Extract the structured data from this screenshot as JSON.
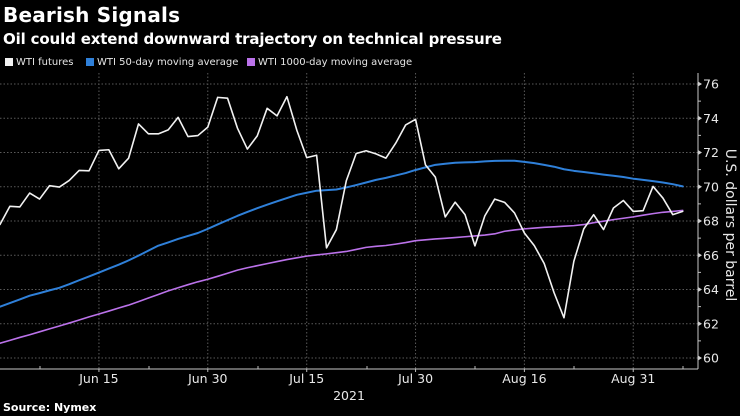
{
  "header": {
    "title": "Bearish Signals",
    "subtitle": "Oil could extend downward trajectory on technical pressure"
  },
  "legend": [
    {
      "label": "WTI futures",
      "color": "#f2f2f2"
    },
    {
      "label": "WTI 50-day moving average",
      "color": "#2f80d9"
    },
    {
      "label": "WTI 1000-day moving average",
      "color": "#bb72ea"
    }
  ],
  "footer": {
    "source": "Source: Nymex"
  },
  "chart_data": {
    "type": "line",
    "title": "Bearish Signals",
    "subtitle": "Oil could extend downward trajectory on technical pressure",
    "xlabel": "2021",
    "ylabel": "U.S. dollars per barrel",
    "yaxis_position": "right",
    "ylim": [
      59.4,
      76.6
    ],
    "yticks": [
      60,
      62,
      64,
      66,
      68,
      70,
      72,
      74,
      76
    ],
    "ytick_labels": [
      "60",
      "62",
      "64",
      "66",
      "68",
      "70",
      "72",
      "74",
      "76"
    ],
    "xtick_dates": [
      "2021-06-15",
      "2021-06-30",
      "2021-07-15",
      "2021-07-30",
      "2021-08-16",
      "2021-08-31"
    ],
    "xtick_labels": [
      "Jun 15",
      "Jun 30",
      "Jul 15",
      "Jul 30",
      "Aug 16",
      "Aug 31"
    ],
    "grid": true,
    "legend_position": "top-left",
    "x": [
      "2021-06-01",
      "2021-06-02",
      "2021-06-03",
      "2021-06-04",
      "2021-06-07",
      "2021-06-08",
      "2021-06-09",
      "2021-06-10",
      "2021-06-11",
      "2021-06-14",
      "2021-06-15",
      "2021-06-16",
      "2021-06-17",
      "2021-06-18",
      "2021-06-21",
      "2021-06-22",
      "2021-06-23",
      "2021-06-24",
      "2021-06-25",
      "2021-06-28",
      "2021-06-29",
      "2021-06-30",
      "2021-07-01",
      "2021-07-02",
      "2021-07-06",
      "2021-07-07",
      "2021-07-08",
      "2021-07-09",
      "2021-07-12",
      "2021-07-13",
      "2021-07-14",
      "2021-07-15",
      "2021-07-16",
      "2021-07-19",
      "2021-07-20",
      "2021-07-21",
      "2021-07-22",
      "2021-07-23",
      "2021-07-26",
      "2021-07-27",
      "2021-07-28",
      "2021-07-29",
      "2021-07-30",
      "2021-08-02",
      "2021-08-03",
      "2021-08-04",
      "2021-08-05",
      "2021-08-06",
      "2021-08-09",
      "2021-08-10",
      "2021-08-11",
      "2021-08-12",
      "2021-08-13",
      "2021-08-16",
      "2021-08-17",
      "2021-08-18",
      "2021-08-19",
      "2021-08-20",
      "2021-08-23",
      "2021-08-24",
      "2021-08-25",
      "2021-08-26",
      "2021-08-27",
      "2021-08-30",
      "2021-08-31",
      "2021-09-01",
      "2021-09-02",
      "2021-09-03",
      "2021-09-07",
      "2021-09-08"
    ],
    "series": [
      {
        "name": "WTI 1000-day moving average",
        "color": "#bb72ea",
        "values": [
          60.86,
          61.03,
          61.2,
          61.36,
          61.53,
          61.7,
          61.87,
          62.04,
          62.22,
          62.4,
          62.57,
          62.74,
          62.92,
          63.09,
          63.29,
          63.5,
          63.71,
          63.92,
          64.1,
          64.28,
          64.45,
          64.6,
          64.77,
          64.95,
          65.13,
          65.27,
          65.39,
          65.51,
          65.63,
          65.75,
          65.85,
          65.95,
          66.02,
          66.08,
          66.15,
          66.22,
          66.34,
          66.46,
          66.52,
          66.57,
          66.65,
          66.74,
          66.85,
          66.9,
          66.95,
          66.99,
          67.03,
          67.08,
          67.13,
          67.18,
          67.25,
          67.4,
          67.48,
          67.54,
          67.59,
          67.63,
          67.66,
          67.7,
          67.73,
          67.79,
          67.9,
          67.99,
          68.08,
          68.16,
          68.24,
          68.34,
          68.43,
          68.51,
          68.56,
          68.62
        ]
      },
      {
        "name": "WTI 50-day moving average",
        "color": "#2f80d9",
        "values": [
          63.0,
          63.21,
          63.42,
          63.64,
          63.79,
          63.95,
          64.1,
          64.31,
          64.54,
          64.76,
          64.99,
          65.22,
          65.45,
          65.7,
          65.98,
          66.27,
          66.56,
          66.75,
          66.95,
          67.13,
          67.3,
          67.54,
          67.8,
          68.05,
          68.3,
          68.53,
          68.75,
          68.95,
          69.15,
          69.34,
          69.53,
          69.65,
          69.77,
          69.8,
          69.84,
          69.96,
          70.1,
          70.25,
          70.4,
          70.52,
          70.66,
          70.8,
          70.98,
          71.13,
          71.28,
          71.34,
          71.4,
          71.42,
          71.44,
          71.48,
          71.51,
          71.52,
          71.52,
          71.45,
          71.38,
          71.28,
          71.17,
          71.02,
          70.93,
          70.86,
          70.79,
          70.71,
          70.64,
          70.57,
          70.47,
          70.4,
          70.33,
          70.25,
          70.15,
          70.02
        ]
      },
      {
        "name": "WTI futures",
        "color": "#f2f2f2",
        "values": [
          67.8,
          68.86,
          68.82,
          69.63,
          69.28,
          70.06,
          69.98,
          70.37,
          70.95,
          70.93,
          72.12,
          72.16,
          71.05,
          71.67,
          73.67,
          73.09,
          73.09,
          73.32,
          74.05,
          72.93,
          72.99,
          73.48,
          75.22,
          75.17,
          73.42,
          72.2,
          72.97,
          74.58,
          74.14,
          75.26,
          73.3,
          71.7,
          71.84,
          66.43,
          67.5,
          70.35,
          71.94,
          72.1,
          71.92,
          71.67,
          72.55,
          73.61,
          73.94,
          71.28,
          70.56,
          68.24,
          69.1,
          68.37,
          66.55,
          68.3,
          69.28,
          69.09,
          68.47,
          67.3,
          66.56,
          65.52,
          63.81,
          62.35,
          65.65,
          67.54,
          68.37,
          67.5,
          68.76,
          69.2,
          68.56,
          68.6,
          70.02,
          69.34,
          68.37,
          68.56
        ]
      }
    ]
  }
}
